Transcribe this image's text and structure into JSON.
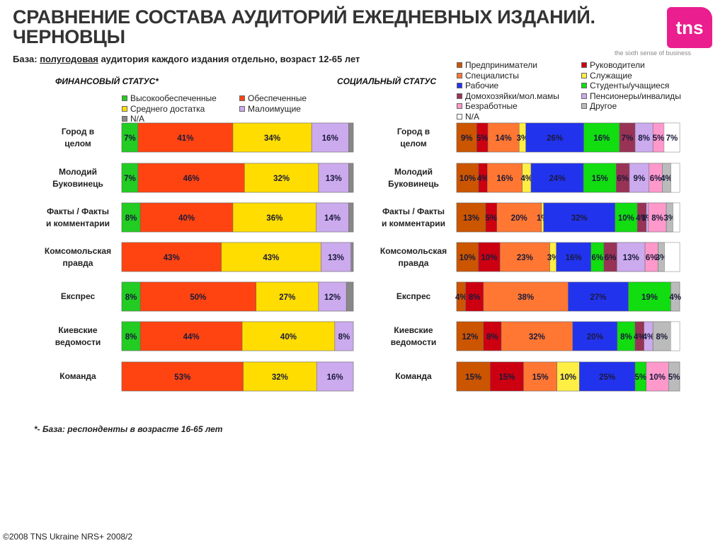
{
  "header": {
    "title_line1": "СРАВНЕНИЕ СОСТАВА АУДИТОРИЙ ЕЖЕДНЕВНЫХ ИЗДАНИЙ.",
    "title_line2": "ЧЕРНОВЦЫ",
    "base_prefix": "База: ",
    "base_underlined": "полугодовая",
    "base_suffix": " аудитория каждого издания отдельно, возраст 12-65 лет",
    "logo_text": "tns",
    "tagline": "the sixth sense of business"
  },
  "footer": {
    "footnote": "*- База: респонденты в возрасте 16-65 лет",
    "copyright": "©2008 TNS Ukraine  NRS+ 2008/2"
  },
  "colors": {
    "brand": "#ea1e8e"
  },
  "chart_data": [
    {
      "type": "bar",
      "orientation": "horizontal-stacked-100",
      "title": "ФИНАНСОВЫЙ СТАТУС*",
      "categories": [
        "Город в целом",
        "Молодий Буковинець",
        "Факты / Факты и комментарии",
        "Комсомольская правда",
        "Експрес",
        "Киевские ведомости",
        "Команда"
      ],
      "series": [
        {
          "name": "Высокообеспеченные",
          "color": "#22cc22",
          "values": [
            7,
            7,
            8,
            0,
            8,
            8,
            0
          ]
        },
        {
          "name": "Обеспеченные",
          "color": "#ff4411",
          "values": [
            41,
            46,
            40,
            43,
            50,
            44,
            53
          ]
        },
        {
          "name": "Среднего достатка",
          "color": "#ffdd00",
          "values": [
            34,
            32,
            36,
            43,
            27,
            40,
            32
          ]
        },
        {
          "name": "Малоимущие",
          "color": "#ccaaee",
          "values": [
            16,
            13,
            14,
            13,
            12,
            8,
            16
          ]
        },
        {
          "name": "N/A",
          "color": "#888888",
          "values": [
            2,
            2,
            2,
            1,
            3,
            0,
            0
          ]
        }
      ],
      "labels_shown": [
        [
          "7%",
          "41%",
          "34%",
          "16%",
          ""
        ],
        [
          "7%",
          "46%",
          "32%",
          "13%",
          ""
        ],
        [
          "8%",
          "40%",
          "36%",
          "14%",
          ""
        ],
        [
          "",
          "43%",
          "43%",
          "13%",
          ""
        ],
        [
          "8%",
          "50%",
          "27%",
          "12%",
          ""
        ],
        [
          "8%",
          "44%",
          "40%",
          "8%",
          ""
        ],
        [
          "",
          "53%",
          "32%",
          "16%",
          ""
        ]
      ],
      "legend": "top"
    },
    {
      "type": "bar",
      "orientation": "horizontal-stacked-100",
      "title": "СОЦИАЛЬНЫЙ СТАТУС",
      "categories": [
        "Город в целом",
        "Молодий Буковинець",
        "Факты / Факты и комментарии",
        "Комсомольская правда",
        "Експрес",
        "Киевские ведомости",
        "Команда"
      ],
      "series": [
        {
          "name": "Предприниматели",
          "color": "#cc5500",
          "values": [
            9,
            10,
            13,
            10,
            4,
            12,
            15
          ]
        },
        {
          "name": "Руководители",
          "color": "#cc0011",
          "values": [
            5,
            4,
            5,
            10,
            8,
            8,
            15
          ]
        },
        {
          "name": "Специалисты",
          "color": "#ff7733",
          "values": [
            14,
            16,
            20,
            23,
            38,
            32,
            15
          ]
        },
        {
          "name": "Служащие",
          "color": "#ffee44",
          "values": [
            3,
            4,
            1,
            3,
            0,
            0,
            10
          ]
        },
        {
          "name": "Рабочие",
          "color": "#2233ee",
          "values": [
            26,
            24,
            32,
            16,
            27,
            20,
            25
          ]
        },
        {
          "name": "Студенты/учащиеся",
          "color": "#11dd11",
          "values": [
            16,
            15,
            10,
            6,
            19,
            8,
            5
          ]
        },
        {
          "name": "Домохозяйки/мол.мамы",
          "color": "#993355",
          "values": [
            7,
            6,
            4,
            6,
            0,
            4,
            0
          ]
        },
        {
          "name": "Пенсионеры/инвалиды",
          "color": "#ccaaee",
          "values": [
            8,
            9,
            1,
            13,
            0,
            4,
            0
          ]
        },
        {
          "name": "Безработные",
          "color": "#ff99cc",
          "values": [
            5,
            6,
            8,
            6,
            0,
            0,
            10
          ]
        },
        {
          "name": "Другое",
          "color": "#bbbbbb",
          "values": [
            0,
            4,
            3,
            3,
            4,
            8,
            5
          ]
        },
        {
          "name": "N/A",
          "color": "#ffffff",
          "values": [
            7,
            4,
            3,
            7,
            0,
            4,
            0
          ]
        }
      ],
      "labels_shown": [
        [
          "9%",
          "5%",
          "14%",
          "3%",
          "26%",
          "16%",
          "7%",
          "8%",
          "5%",
          "",
          "7%"
        ],
        [
          "10%",
          "4%",
          "16%",
          "4%",
          "24%",
          "15%",
          "6%",
          "9%",
          "6%",
          "4%",
          ""
        ],
        [
          "13%",
          "5%",
          "20%",
          "1%",
          "32%",
          "10%",
          "4%",
          "1%",
          "8%",
          "3%",
          ""
        ],
        [
          "10%",
          "10%",
          "23%",
          "3%",
          "16%",
          "6%",
          "6%",
          "13%",
          "6%",
          "3%",
          ""
        ],
        [
          "4%",
          "8%",
          "38%",
          "",
          "27%",
          "19%",
          "",
          "",
          "",
          "4%",
          ""
        ],
        [
          "12%",
          "8%",
          "32%",
          "",
          "20%",
          "8%",
          "4%",
          "4%",
          "",
          "8%",
          ""
        ],
        [
          "15%",
          "15%",
          "15%",
          "10%",
          "25%",
          "5%",
          "",
          "",
          "10%",
          "5%",
          ""
        ]
      ],
      "legend": "top"
    }
  ]
}
